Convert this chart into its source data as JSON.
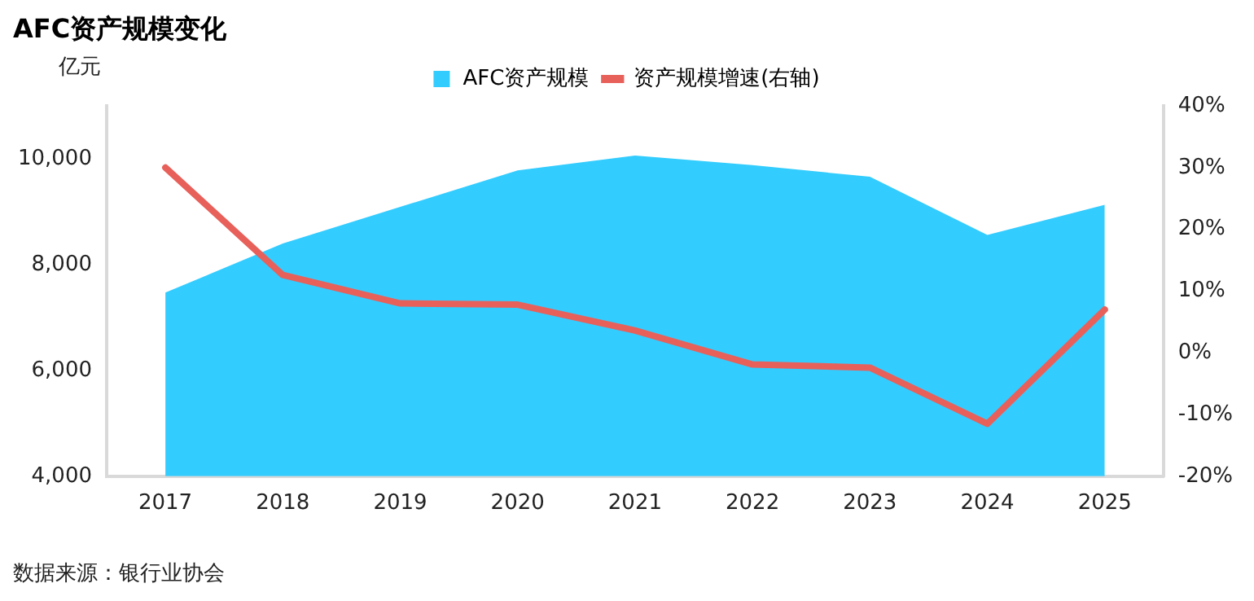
{
  "chart_data": {
    "type": "area",
    "title": "AFC资产规模变化",
    "ylabel": "亿元",
    "categories": [
      "2017",
      "2018",
      "2019",
      "2020",
      "2021",
      "2022",
      "2023",
      "2024",
      "2025"
    ],
    "series": [
      {
        "name": "AFC资产规模",
        "color": "#33ccff",
        "values": [
          7470,
          8400,
          9090,
          9780,
          10060,
          9880,
          9660,
          8560,
          9130
        ]
      },
      {
        "name": "资产规模增速(右轴)",
        "type": "line",
        "axis": "y2",
        "color": "#e8605a",
        "values": [
          30,
          12.6,
          8,
          7.8,
          3.6,
          -1.9,
          -2.4,
          -11.5,
          7
        ]
      }
    ],
    "ylim": [
      4000,
      11000
    ],
    "yticks": [
      {
        "value": 4000,
        "label": "4,000"
      },
      {
        "value": 6000,
        "label": "6,000"
      },
      {
        "value": 8000,
        "label": "8,000"
      },
      {
        "value": 10000,
        "label": "10,000"
      }
    ],
    "y2lim": [
      -20,
      40
    ],
    "y2ticks": [
      {
        "value": -20,
        "label": "-20%"
      },
      {
        "value": -10,
        "label": "-10%"
      },
      {
        "value": 0,
        "label": "0%"
      },
      {
        "value": 10,
        "label": "10%"
      },
      {
        "value": 20,
        "label": "20%"
      },
      {
        "value": 30,
        "label": "30%"
      },
      {
        "value": 40,
        "label": "40%"
      }
    ],
    "grid": false,
    "legend": "top",
    "marker": "none",
    "line_style": "solid",
    "annotations": [
      "数据来源：银行业协会"
    ]
  }
}
